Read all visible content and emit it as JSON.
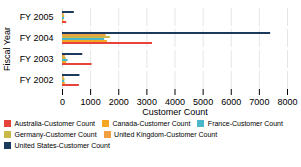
{
  "chart_data": {
    "type": "bar",
    "orientation": "horizontal",
    "xlabel": "Customer Count",
    "ylabel": "Fiscal Year",
    "categories": [
      "FY 2002",
      "FY 2003",
      "FY 2004",
      "FY 2005"
    ],
    "series": [
      {
        "name": "Australia-Customer Count",
        "color": "#e8433a",
        "values": [
          600,
          1050,
          3200,
          150
        ]
      },
      {
        "name": "Canada-Customer Count",
        "color": "#f5a623",
        "values": [
          100,
          150,
          1600,
          50
        ]
      },
      {
        "name": "France-Customer Count",
        "color": "#4ab8c8",
        "values": [
          80,
          200,
          1500,
          70
        ]
      },
      {
        "name": "Germany-Customer Count",
        "color": "#c8b94a",
        "values": [
          90,
          130,
          1700,
          80
        ]
      },
      {
        "name": "United Kingdom-Customer Count",
        "color": "#f0a040",
        "values": [
          60,
          100,
          1550,
          60
        ]
      },
      {
        "name": "United States-Customer Count",
        "color": "#1b3a5c",
        "values": [
          620,
          720,
          7400,
          420
        ]
      }
    ],
    "xlim": [
      0,
      8000
    ],
    "xticks": [
      0,
      1000,
      2000,
      3000,
      4000,
      5000,
      6000,
      7000,
      8000
    ],
    "grid": true,
    "legend": "bottom"
  }
}
